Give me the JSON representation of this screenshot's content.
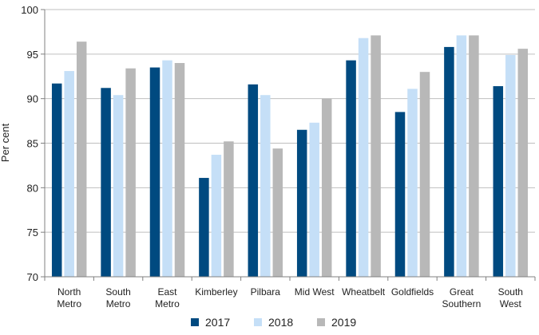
{
  "chart_data": {
    "type": "bar",
    "ylabel": "Per cent",
    "ylim": [
      70,
      100
    ],
    "yticks": [
      "70",
      "75",
      "80",
      "85",
      "90",
      "95",
      "100"
    ],
    "categories": [
      [
        "North",
        "Metro"
      ],
      [
        "South",
        "Metro"
      ],
      [
        "East",
        "Metro"
      ],
      [
        "Kimberley"
      ],
      [
        "Pilbara"
      ],
      [
        "Mid West"
      ],
      [
        "Wheatbelt"
      ],
      [
        "Goldfields"
      ],
      [
        "Great",
        "Southern"
      ],
      [
        "South",
        "West"
      ]
    ],
    "series": [
      {
        "name": "2017",
        "color": "#004a80",
        "values": [
          91.7,
          91.2,
          93.5,
          81.1,
          91.6,
          86.5,
          94.3,
          88.5,
          95.8,
          91.4
        ]
      },
      {
        "name": "2018",
        "color": "#c5dff7",
        "values": [
          93.1,
          90.4,
          94.3,
          83.7,
          90.4,
          87.3,
          96.8,
          91.1,
          97.1,
          94.9
        ]
      },
      {
        "name": "2019",
        "color": "#b8b8b8",
        "values": [
          96.4,
          93.4,
          94.0,
          85.2,
          84.4,
          90.0,
          97.1,
          93.0,
          97.1,
          95.6
        ]
      }
    ],
    "grid": true,
    "legend_position": "bottom"
  }
}
